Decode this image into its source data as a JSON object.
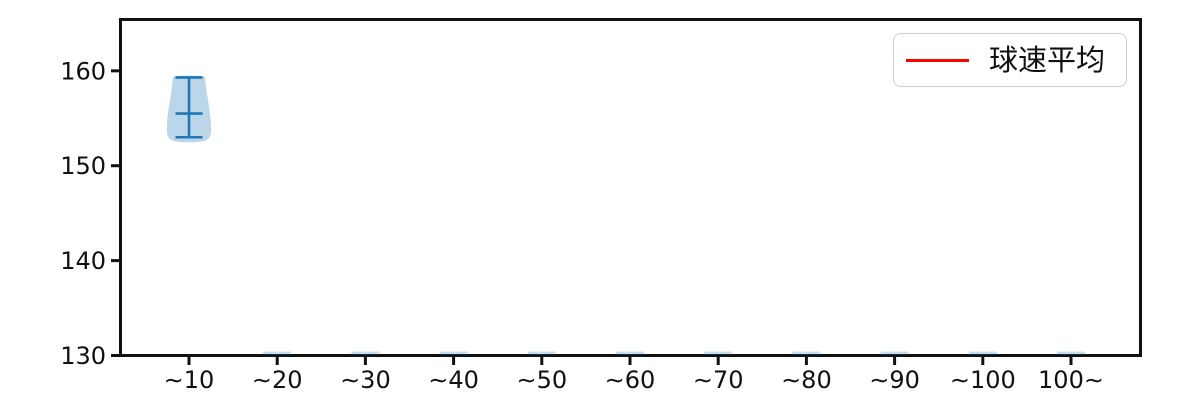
{
  "chart_data": {
    "type": "violin",
    "title": "",
    "xlabel": "",
    "ylabel": "",
    "grid": false,
    "background_color": "#ffffff",
    "categories": [
      "∼10",
      "∼20",
      "∼30",
      "∼40",
      "∼50",
      "∼60",
      "∼70",
      "∼80",
      "∼90",
      "∼100",
      "100∼"
    ],
    "yticks": [
      130,
      140,
      150,
      160
    ],
    "ylim": [
      130,
      165.2
    ],
    "legend": {
      "label": "球速平均",
      "line_color": "#ff0000",
      "position": "upper right"
    },
    "violins": [
      {
        "category": "∼10",
        "index": 0,
        "min": 153.0,
        "mean": 155.5,
        "max": 159.3,
        "shape": {
          "top_half_width_frac": 0.18,
          "bottom_half_width_frac": 0.25
        }
      }
    ],
    "empty_categories": [
      "∼20",
      "∼30",
      "∼40",
      "∼50",
      "∼60",
      "∼70",
      "∼80",
      "∼90",
      "∼100",
      "100∼"
    ],
    "empty_bucket_marker": {
      "value": 130,
      "note": "flat sliver rendered at axis bottom for buckets with no data"
    },
    "colors": {
      "violin_fill": "rgba(31,119,180,0.30)",
      "violin_line": "#1f77b4",
      "empty_marker_fill": "rgba(31,119,180,0.25)",
      "axis": "#111111"
    }
  }
}
